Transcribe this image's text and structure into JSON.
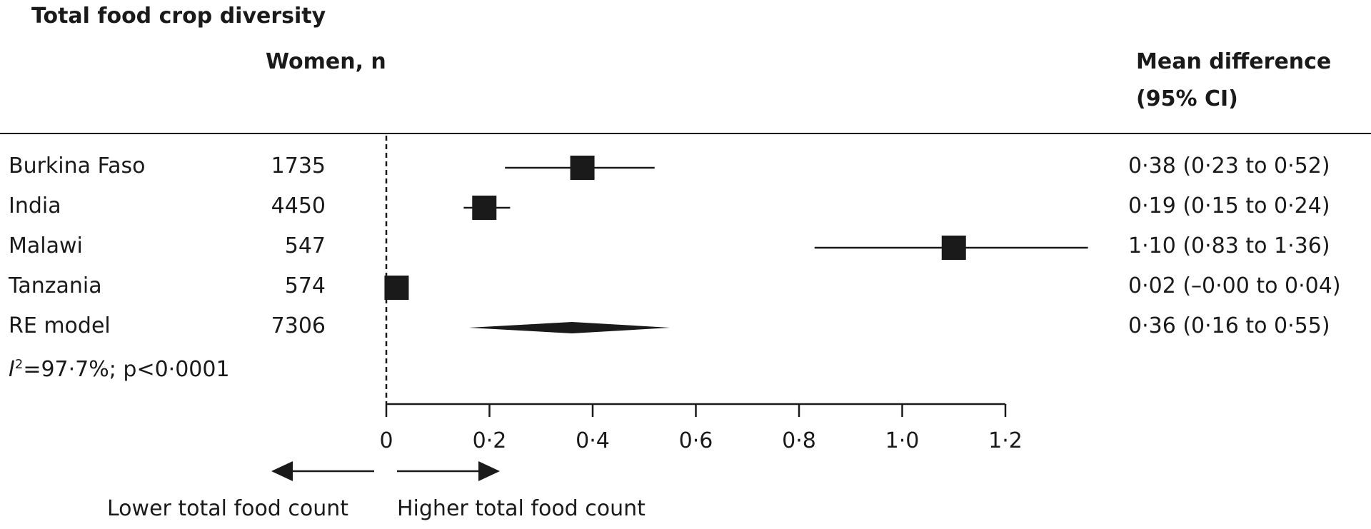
{
  "title": "Total food crop diversity",
  "columns": {
    "women": "Women, n",
    "md_line1": "Mean difference",
    "md_line2": "(95% CI)"
  },
  "heterogeneity": {
    "symbol": "I",
    "superscript": "2",
    "text": "=97·7%; p<0·0001"
  },
  "direction_labels": {
    "lower": "Lower total food count",
    "higher": "Higher total food count"
  },
  "chart_data": {
    "type": "forest",
    "xlim": [
      0,
      1.2
    ],
    "ticks": [
      0,
      0.2,
      0.4,
      0.6,
      0.8,
      1.0,
      1.2
    ],
    "tick_labels": [
      "0",
      "0·2",
      "0·4",
      "0·6",
      "0·8",
      "1·0",
      "1·2"
    ],
    "reference_line": 0,
    "rows": [
      {
        "label": "Burkina Faso",
        "n": "1735",
        "estimate": 0.38,
        "lower": 0.23,
        "upper": 0.52,
        "ci_text": "0·38 (0·23 to 0·52)",
        "kind": "study"
      },
      {
        "label": "India",
        "n": "4450",
        "estimate": 0.19,
        "lower": 0.15,
        "upper": 0.24,
        "ci_text": "0·19 (0·15 to 0·24)",
        "kind": "study"
      },
      {
        "label": "Malawi",
        "n": "547",
        "estimate": 1.1,
        "lower": 0.83,
        "upper": 1.36,
        "ci_text": "1·10 (0·83 to 1·36)",
        "kind": "study"
      },
      {
        "label": "Tanzania",
        "n": "574",
        "estimate": 0.02,
        "lower": -0.0,
        "upper": 0.04,
        "ci_text": "0·02 (–0·00 to 0·04)",
        "kind": "study"
      },
      {
        "label": "RE model",
        "n": "7306",
        "estimate": 0.36,
        "lower": 0.16,
        "upper": 0.55,
        "ci_text": "0·36 (0·16 to 0·55)",
        "kind": "pooled"
      }
    ]
  }
}
